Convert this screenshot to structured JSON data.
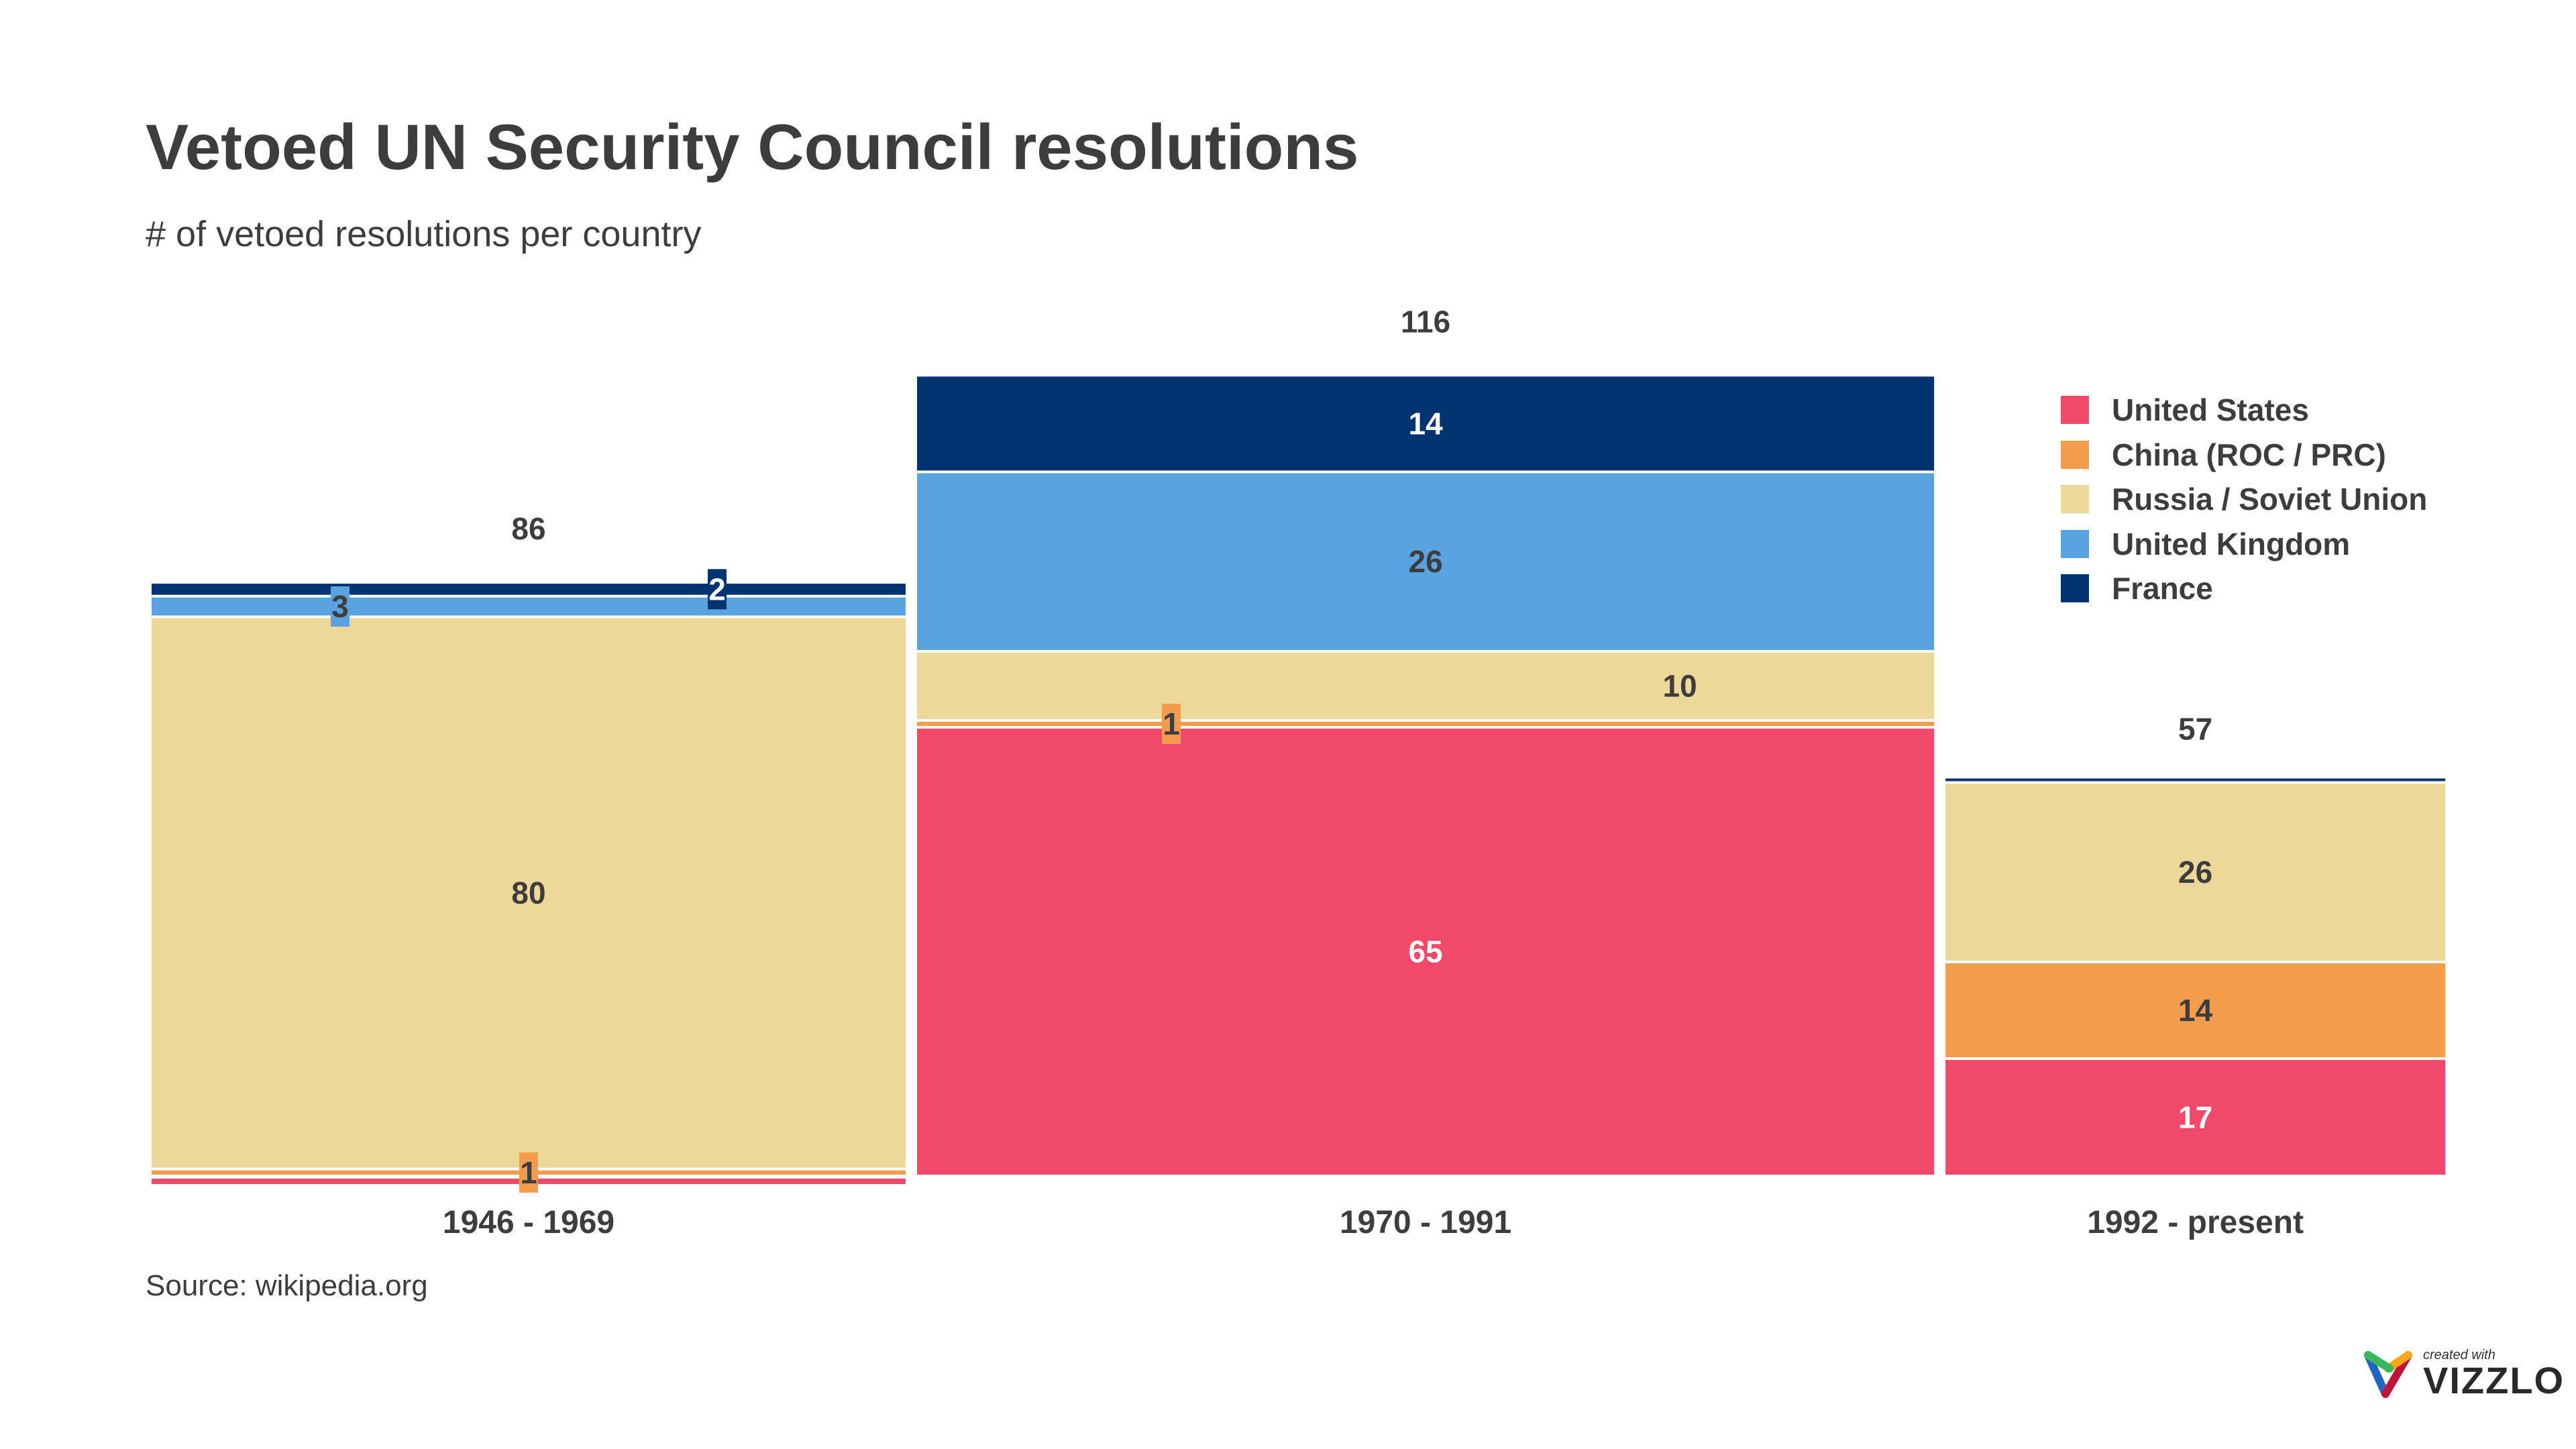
{
  "chart_data": {
    "type": "bar",
    "variant": "variable-width stacked (mosaic)",
    "title": "Vetoed UN Security Council resolutions",
    "subtitle": "# of vetoed resolutions per country",
    "source": "Source: wikipedia.org",
    "categories": [
      "1946 - 1969",
      "1970 - 1991",
      "1992 - present"
    ],
    "totals": [
      86,
      116,
      57
    ],
    "series": [
      {
        "name": "United States",
        "color": "#F0496A",
        "values": [
          0,
          65,
          17
        ]
      },
      {
        "name": "China (ROC / PRC)",
        "color": "#F39C4C",
        "values": [
          1,
          1,
          14
        ]
      },
      {
        "name": "Russia / Soviet Union",
        "color": "#ECD899",
        "values": [
          80,
          10,
          26
        ]
      },
      {
        "name": "United Kingdom",
        "color": "#59A4E0",
        "values": [
          3,
          26,
          0
        ]
      },
      {
        "name": "France",
        "color": "#013371",
        "values": [
          2,
          14,
          0
        ]
      }
    ],
    "legend_position": "top-right",
    "grid": false
  },
  "logo": {
    "small": "created with",
    "big": "VIZZLO"
  }
}
